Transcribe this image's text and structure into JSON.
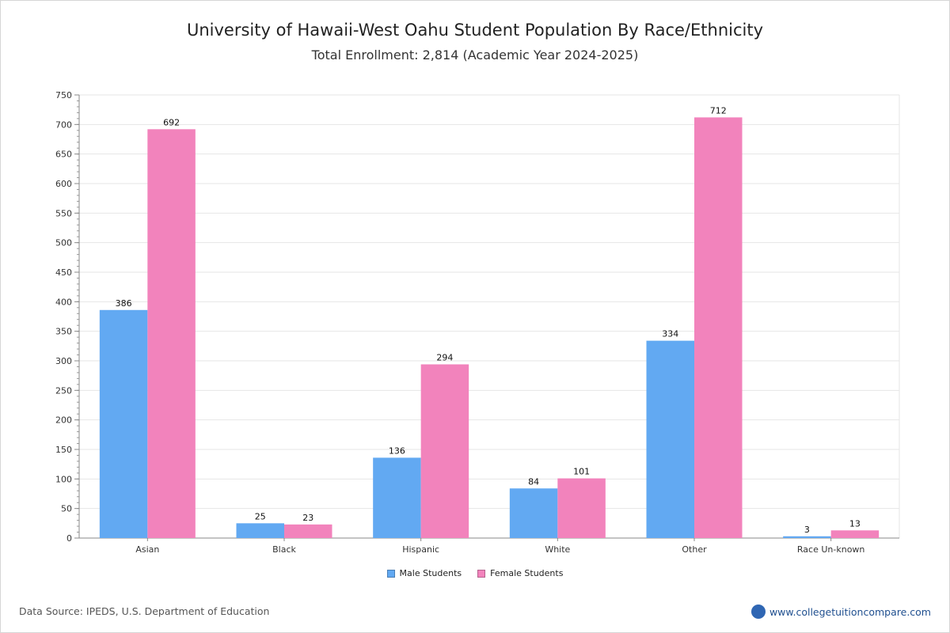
{
  "chart_data": {
    "type": "bar",
    "title": "University of Hawaii-West Oahu Student Population By Race/Ethnicity",
    "subtitle": "Total Enrollment: 2,814 (Academic Year 2024-2025)",
    "categories": [
      "Asian",
      "Black",
      "Hispanic",
      "White",
      "Other",
      "Race Un-known"
    ],
    "series": [
      {
        "name": "Male Students",
        "values": [
          386,
          25,
          136,
          84,
          334,
          3
        ],
        "color": "#62a9f2"
      },
      {
        "name": "Female Students",
        "values": [
          692,
          23,
          294,
          101,
          712,
          13
        ],
        "color": "#f283bc"
      }
    ],
    "ylim": [
      0,
      750
    ],
    "yticks": [
      0,
      50,
      100,
      150,
      200,
      250,
      300,
      350,
      400,
      450,
      500,
      550,
      600,
      650,
      700,
      750
    ],
    "grid": true,
    "legend_position": "bottom-center",
    "xlabel": "",
    "ylabel": ""
  },
  "footer": {
    "source": "Data Source: IPEDS, U.S. Department of Education",
    "site": "www.collegetuitioncompare.com",
    "logo_icon": "ctc-logo-icon"
  }
}
